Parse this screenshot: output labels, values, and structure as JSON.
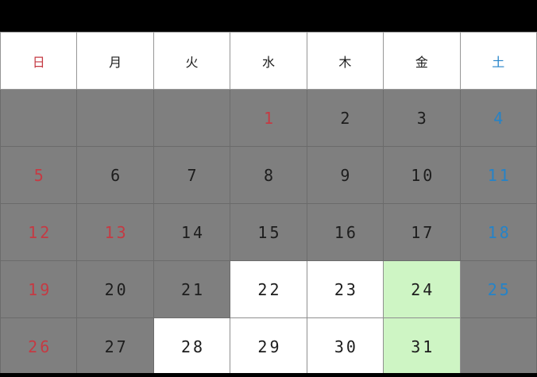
{
  "calendar": {
    "weekdays": [
      {
        "label": "日",
        "fg": "red"
      },
      {
        "label": "月",
        "fg": "black"
      },
      {
        "label": "火",
        "fg": "black"
      },
      {
        "label": "水",
        "fg": "black"
      },
      {
        "label": "木",
        "fg": "black"
      },
      {
        "label": "金",
        "fg": "black"
      },
      {
        "label": "土",
        "fg": "blue"
      }
    ],
    "weeks": [
      [
        {
          "day": "",
          "fg": "black",
          "bg": "gray"
        },
        {
          "day": "",
          "fg": "black",
          "bg": "gray"
        },
        {
          "day": "",
          "fg": "black",
          "bg": "gray"
        },
        {
          "day": "1",
          "fg": "red",
          "bg": "gray"
        },
        {
          "day": "2",
          "fg": "black",
          "bg": "gray"
        },
        {
          "day": "3",
          "fg": "black",
          "bg": "gray"
        },
        {
          "day": "4",
          "fg": "blue",
          "bg": "gray"
        }
      ],
      [
        {
          "day": "5",
          "fg": "red",
          "bg": "gray"
        },
        {
          "day": "6",
          "fg": "black",
          "bg": "gray"
        },
        {
          "day": "7",
          "fg": "black",
          "bg": "gray"
        },
        {
          "day": "8",
          "fg": "black",
          "bg": "gray"
        },
        {
          "day": "9",
          "fg": "black",
          "bg": "gray"
        },
        {
          "day": "10",
          "fg": "black",
          "bg": "gray"
        },
        {
          "day": "11",
          "fg": "blue",
          "bg": "gray"
        }
      ],
      [
        {
          "day": "12",
          "fg": "red",
          "bg": "gray"
        },
        {
          "day": "13",
          "fg": "red",
          "bg": "gray"
        },
        {
          "day": "14",
          "fg": "black",
          "bg": "gray"
        },
        {
          "day": "15",
          "fg": "black",
          "bg": "gray"
        },
        {
          "day": "16",
          "fg": "black",
          "bg": "gray"
        },
        {
          "day": "17",
          "fg": "black",
          "bg": "gray"
        },
        {
          "day": "18",
          "fg": "blue",
          "bg": "gray"
        }
      ],
      [
        {
          "day": "19",
          "fg": "red",
          "bg": "gray"
        },
        {
          "day": "20",
          "fg": "black",
          "bg": "gray"
        },
        {
          "day": "21",
          "fg": "black",
          "bg": "gray"
        },
        {
          "day": "22",
          "fg": "black",
          "bg": "white"
        },
        {
          "day": "23",
          "fg": "black",
          "bg": "white"
        },
        {
          "day": "24",
          "fg": "black",
          "bg": "green"
        },
        {
          "day": "25",
          "fg": "blue",
          "bg": "gray"
        }
      ],
      [
        {
          "day": "26",
          "fg": "red",
          "bg": "gray"
        },
        {
          "day": "27",
          "fg": "black",
          "bg": "gray"
        },
        {
          "day": "28",
          "fg": "black",
          "bg": "white"
        },
        {
          "day": "29",
          "fg": "black",
          "bg": "white"
        },
        {
          "day": "30",
          "fg": "black",
          "bg": "white"
        },
        {
          "day": "31",
          "fg": "black",
          "bg": "green"
        },
        {
          "day": "",
          "fg": "black",
          "bg": "gray"
        }
      ]
    ],
    "colors": {
      "sunday_holiday_text": "#c53a43",
      "saturday_text": "#2583c8",
      "weekday_text": "#1d1d1d",
      "unavailable_cell_bg": "#7f7f7f",
      "available_cell_bg": "#ffffff",
      "highlight_cell_bg": "#cef5c4",
      "frame_bar_bg": "#000000",
      "header_bg": "#ffffff"
    }
  }
}
